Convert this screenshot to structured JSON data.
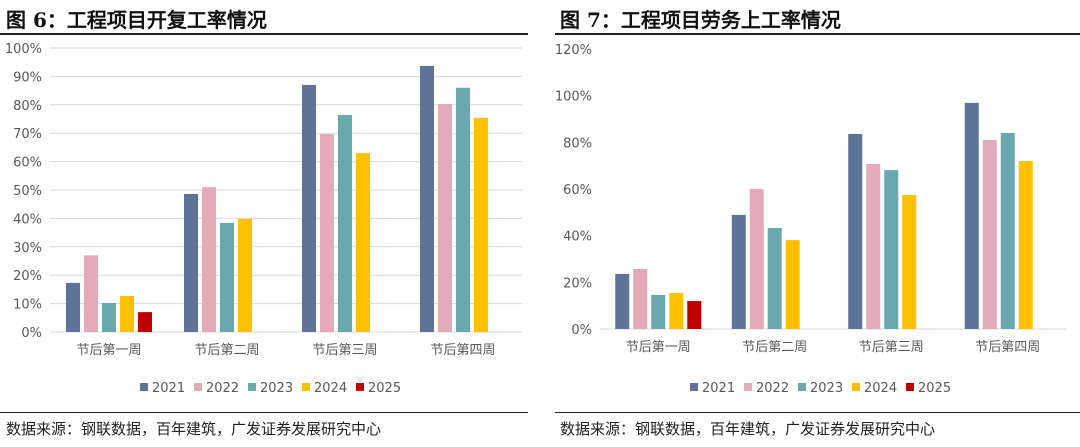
{
  "chart_data": [
    {
      "type": "bar",
      "title": "图 6：工程项目开复工率情况",
      "categories": [
        "节后第一周",
        "节后第二周",
        "节后第三周",
        "节后第四周"
      ],
      "ylim": [
        0,
        100
      ],
      "yticks": [
        "0%",
        "10%",
        "20%",
        "30%",
        "40%",
        "50%",
        "60%",
        "70%",
        "80%",
        "90%",
        "100%"
      ],
      "grid": true,
      "legend": "bottom",
      "series": [
        {
          "name": "2021",
          "color": "#5f7399",
          "values": [
            17.3,
            48.6,
            87,
            93.7
          ]
        },
        {
          "name": "2022",
          "color": "#e3aab9",
          "values": [
            27,
            51,
            69.7,
            80.3
          ]
        },
        {
          "name": "2023",
          "color": "#6aa8b0",
          "values": [
            10.2,
            38.4,
            76.4,
            86
          ]
        },
        {
          "name": "2024",
          "color": "#ffc000",
          "values": [
            12.7,
            39.8,
            63,
            75.4
          ]
        },
        {
          "name": "2025",
          "color": "#c00000",
          "values": [
            7,
            null,
            null,
            null
          ]
        }
      ],
      "source": "数据来源：钢联数据，百年建筑，广发证券发展研究中心"
    },
    {
      "type": "bar",
      "title": "图 7：工程项目劳务上工率情况",
      "categories": [
        "节后第一周",
        "节后第二周",
        "节后第三周",
        "节后第四周"
      ],
      "ylim": [
        0,
        120
      ],
      "yticks": [
        "0%",
        "20%",
        "40%",
        "60%",
        "80%",
        "100%",
        "120%"
      ],
      "grid": false,
      "legend": "bottom",
      "series": [
        {
          "name": "2021",
          "color": "#5f7399",
          "values": [
            23.6,
            48.9,
            83.6,
            96.9
          ]
        },
        {
          "name": "2022",
          "color": "#e3aab9",
          "values": [
            25.7,
            60,
            70.7,
            81
          ]
        },
        {
          "name": "2023",
          "color": "#6aa8b0",
          "values": [
            14.6,
            43.3,
            68.1,
            84
          ]
        },
        {
          "name": "2024",
          "color": "#ffc000",
          "values": [
            15.4,
            38.1,
            57.4,
            72
          ]
        },
        {
          "name": "2025",
          "color": "#c00000",
          "values": [
            12,
            null,
            null,
            null
          ]
        }
      ],
      "source": "数据来源：钢联数据，百年建筑，广发证券发展研究中心"
    }
  ]
}
